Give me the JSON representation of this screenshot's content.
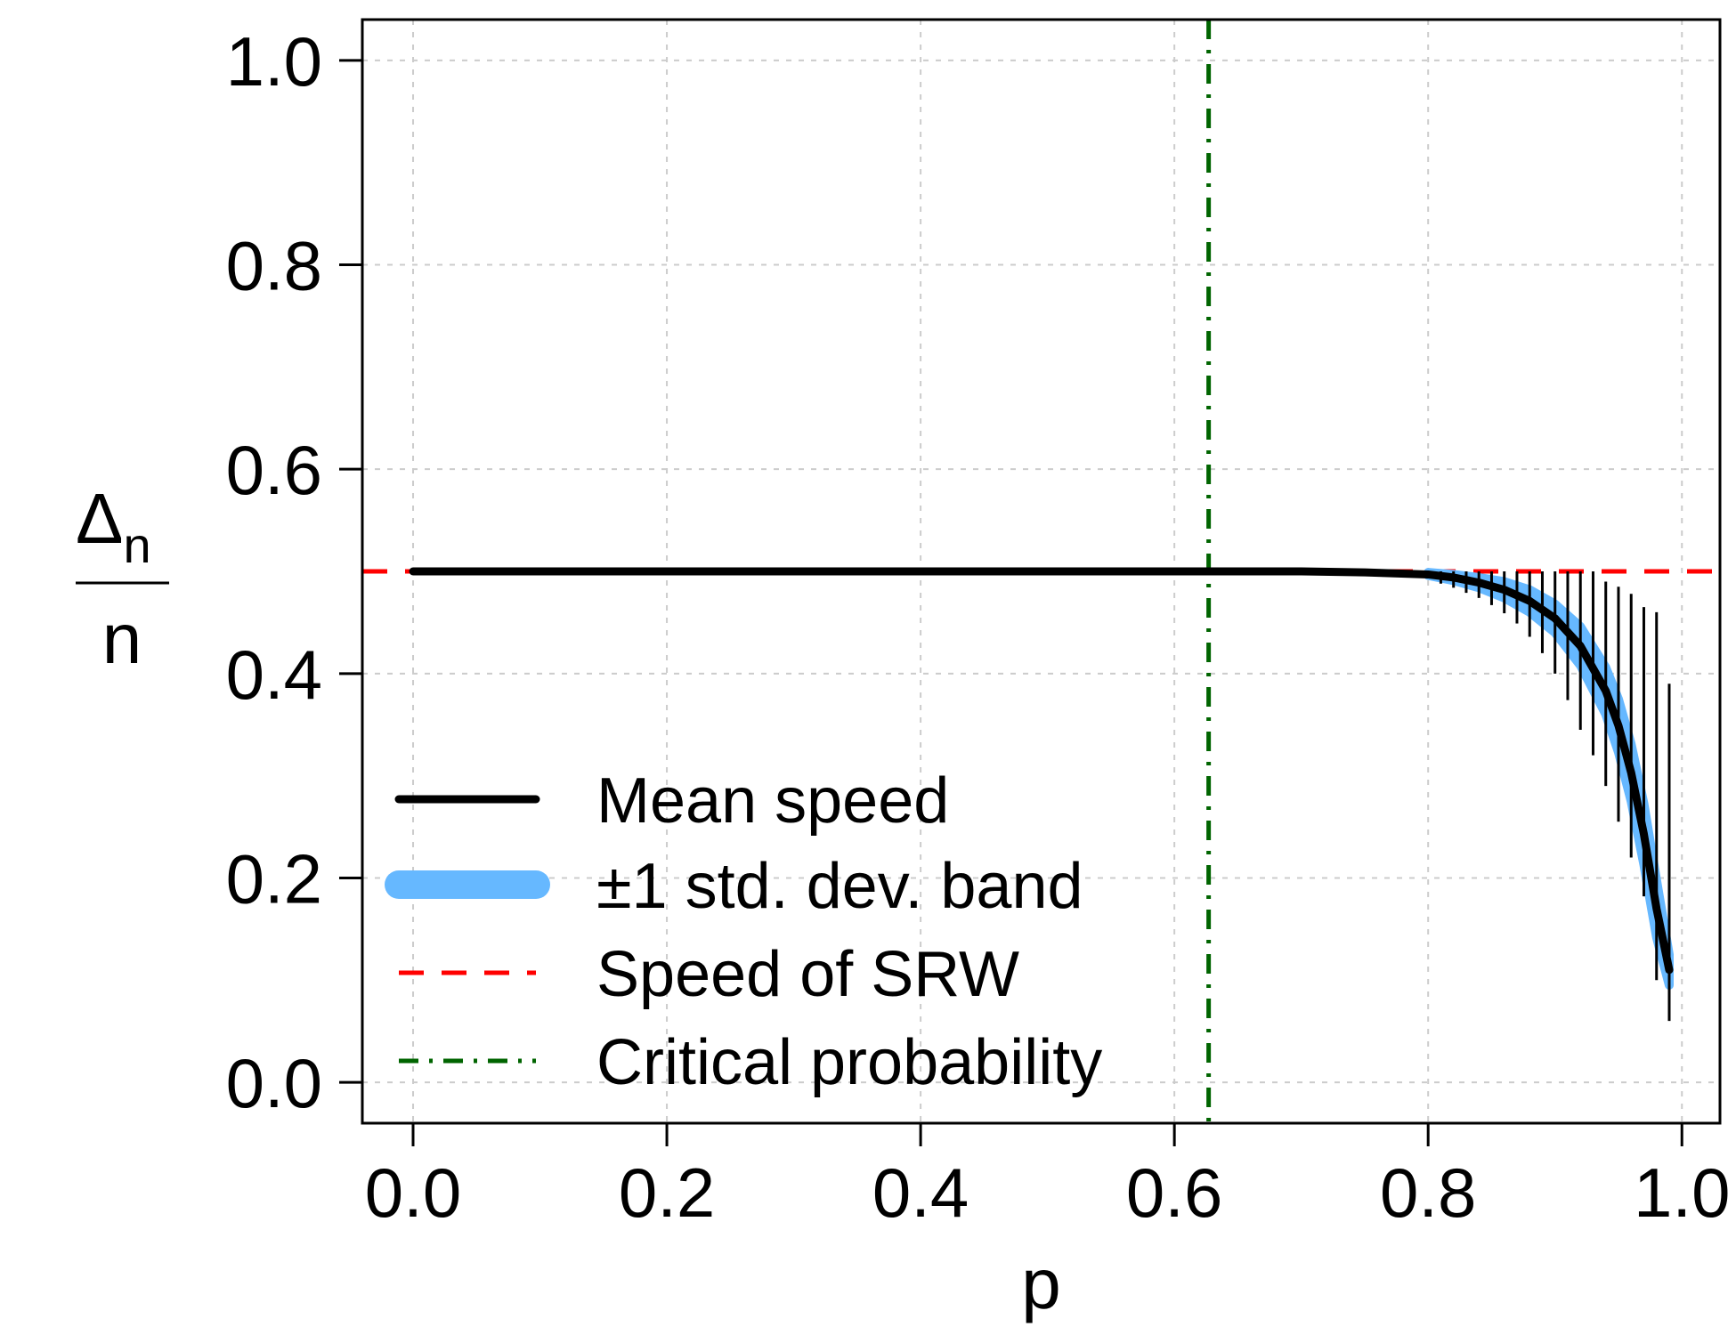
{
  "chart_data": {
    "type": "line",
    "xlabel": "p",
    "ylabel": {
      "numerator": "Δ",
      "subscript": "n",
      "denominator": "n"
    },
    "xlim": [
      -0.04,
      1.03
    ],
    "ylim": [
      -0.04,
      1.04
    ],
    "x_ticks": [
      "0.0",
      "0.2",
      "0.4",
      "0.6",
      "0.8",
      "1.0"
    ],
    "y_ticks": [
      "0.0",
      "0.2",
      "0.4",
      "0.6",
      "0.8",
      "1.0"
    ],
    "grid": true,
    "legend_position": "bottom-left",
    "legend": [
      {
        "label": "Mean speed",
        "color": "#000000",
        "style": "solid"
      },
      {
        "label": "±1 std. dev. band",
        "color": "#66b8ff",
        "style": "band"
      },
      {
        "label": "Speed of SRW",
        "color": "#ff0000",
        "style": "dashed"
      },
      {
        "label": "Critical probability",
        "color": "#006400",
        "style": "dotdash"
      }
    ],
    "series": [
      {
        "name": "Mean speed",
        "x": [
          0.0,
          0.1,
          0.2,
          0.3,
          0.4,
          0.5,
          0.6,
          0.7,
          0.75,
          0.8,
          0.82,
          0.84,
          0.86,
          0.88,
          0.9,
          0.92,
          0.94,
          0.95,
          0.96,
          0.97,
          0.98,
          0.99
        ],
        "y": [
          0.5,
          0.5,
          0.5,
          0.5,
          0.5,
          0.5,
          0.5,
          0.5,
          0.499,
          0.497,
          0.494,
          0.489,
          0.482,
          0.471,
          0.454,
          0.427,
          0.383,
          0.349,
          0.303,
          0.243,
          0.17,
          0.11
        ]
      },
      {
        "name": "±1 std. dev. band",
        "x": [
          0.8,
          0.82,
          0.84,
          0.86,
          0.88,
          0.9,
          0.92,
          0.94,
          0.95,
          0.96,
          0.97,
          0.98,
          0.99
        ],
        "lower": [
          0.496,
          0.491,
          0.484,
          0.474,
          0.46,
          0.44,
          0.408,
          0.36,
          0.323,
          0.275,
          0.213,
          0.142,
          0.095
        ],
        "upper": [
          0.499,
          0.497,
          0.494,
          0.49,
          0.482,
          0.468,
          0.446,
          0.406,
          0.375,
          0.331,
          0.273,
          0.198,
          0.125
        ]
      }
    ],
    "srw_speed": 0.5,
    "critical_probability": 0.627,
    "spread_bars": [
      {
        "x": 0.81,
        "min": 0.488,
        "max": 0.5
      },
      {
        "x": 0.82,
        "min": 0.484,
        "max": 0.5
      },
      {
        "x": 0.83,
        "min": 0.479,
        "max": 0.5
      },
      {
        "x": 0.84,
        "min": 0.474,
        "max": 0.5
      },
      {
        "x": 0.85,
        "min": 0.467,
        "max": 0.5
      },
      {
        "x": 0.86,
        "min": 0.459,
        "max": 0.5
      },
      {
        "x": 0.87,
        "min": 0.449,
        "max": 0.5
      },
      {
        "x": 0.88,
        "min": 0.436,
        "max": 0.5
      },
      {
        "x": 0.89,
        "min": 0.42,
        "max": 0.5
      },
      {
        "x": 0.9,
        "min": 0.4,
        "max": 0.5
      },
      {
        "x": 0.91,
        "min": 0.374,
        "max": 0.5
      },
      {
        "x": 0.92,
        "min": 0.345,
        "max": 0.5
      },
      {
        "x": 0.93,
        "min": 0.32,
        "max": 0.5
      },
      {
        "x": 0.94,
        "min": 0.29,
        "max": 0.49
      },
      {
        "x": 0.95,
        "min": 0.255,
        "max": 0.485
      },
      {
        "x": 0.96,
        "min": 0.22,
        "max": 0.478
      },
      {
        "x": 0.97,
        "min": 0.182,
        "max": 0.465
      },
      {
        "x": 0.98,
        "min": 0.1,
        "max": 0.46
      },
      {
        "x": 0.99,
        "min": 0.06,
        "max": 0.39
      }
    ]
  }
}
